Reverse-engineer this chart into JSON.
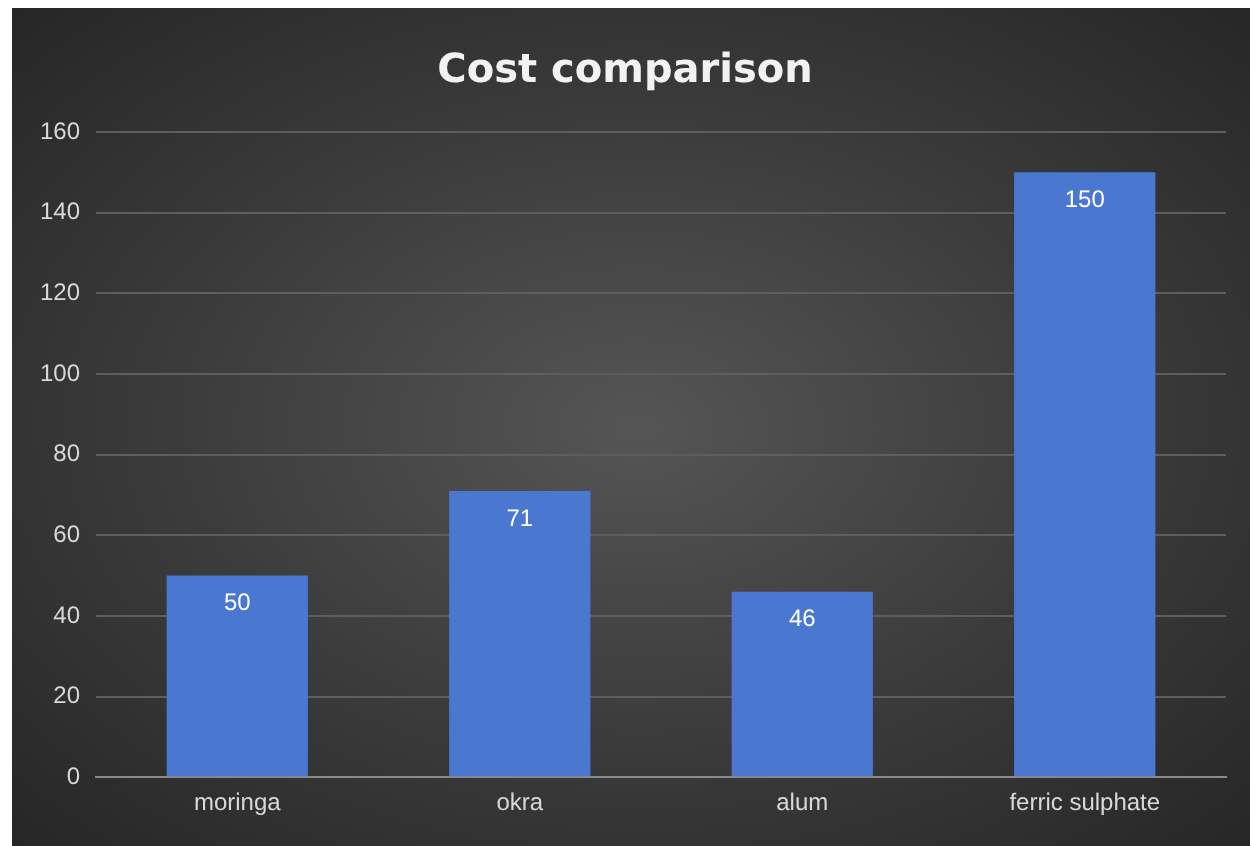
{
  "chart_data": {
    "type": "bar",
    "title": "Cost comparison",
    "categories": [
      "moringa",
      "okra",
      "alum",
      "ferric sulphate"
    ],
    "values": [
      50,
      71,
      46,
      150
    ],
    "color": "#4a78d0",
    "ylim": [
      0,
      160
    ],
    "yticks": [
      0,
      20,
      40,
      60,
      80,
      100,
      120,
      140,
      160
    ],
    "grid": "y",
    "data_labels": true
  }
}
